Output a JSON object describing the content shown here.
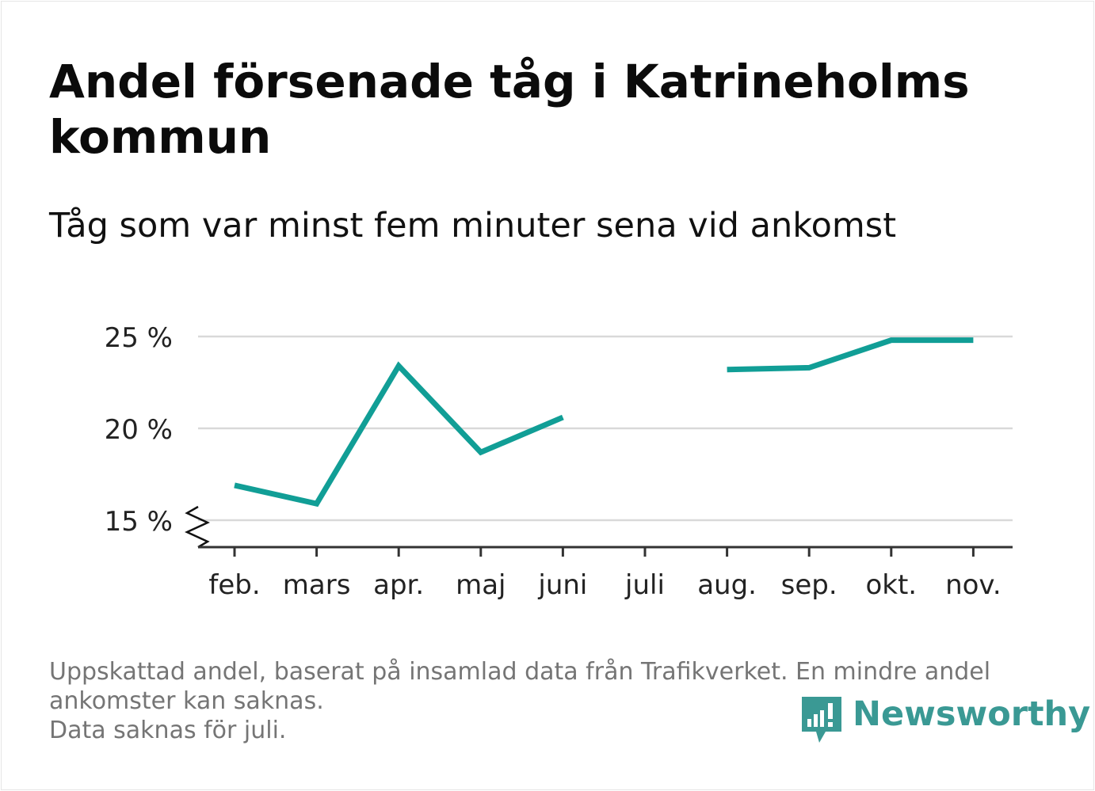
{
  "title": "Andel försenade tåg i Katrineholms kommun",
  "subtitle": "Tåg som var minst fem minuter sena vid ankomst",
  "footnote": {
    "line1": "Uppskattad andel, baserat på insamlad data från Trafikverket. En mindre andel",
    "line2": "ankomster kan saknas.",
    "line3": "Data saknas för juli."
  },
  "brand": {
    "name": "Newsworthy",
    "color": "#3a9994",
    "icon": "chat-bars-icon"
  },
  "colors": {
    "line": "#119e96",
    "grid": "#d9d9d9",
    "axis": "#333333"
  },
  "chart_data": {
    "type": "line",
    "categories": [
      "feb.",
      "mars",
      "apr.",
      "maj",
      "juni",
      "juli",
      "aug.",
      "sep.",
      "okt.",
      "nov."
    ],
    "series": [
      {
        "values": [
          16.9,
          15.9,
          23.4,
          18.7,
          20.6,
          null,
          23.2,
          23.3,
          24.8,
          24.8
        ]
      }
    ],
    "yticks": [
      15,
      20,
      25
    ],
    "ytick_labels": [
      "15 %",
      "20 %",
      "25 %"
    ],
    "ylim": [
      15,
      25
    ],
    "axis_break": true,
    "grid": true,
    "legend": "none"
  }
}
